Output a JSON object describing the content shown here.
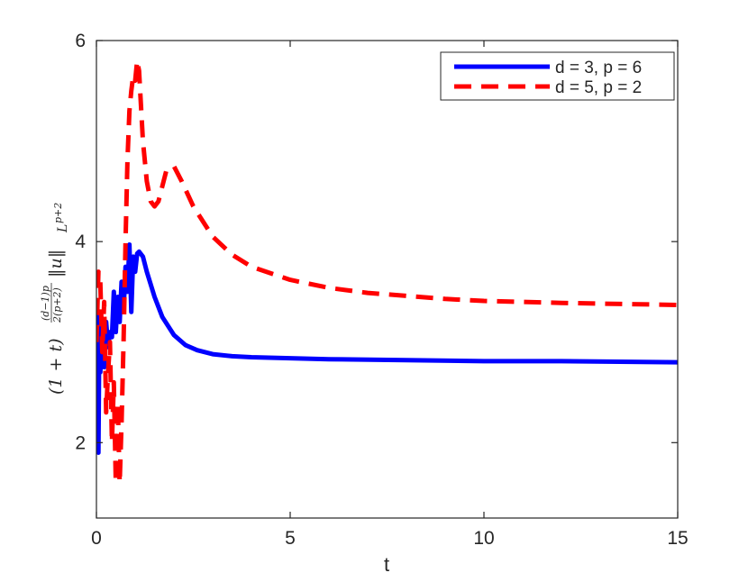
{
  "chart_data": {
    "type": "line",
    "xlabel": "t",
    "ylabel": {
      "base": "(1 + t)",
      "exponent_numerator": "(d−1)p",
      "exponent_denominator": "2(p+2)",
      "norm": "‖u‖",
      "subscript": "L",
      "subscript_exponent": "p+2"
    },
    "xlim": [
      0,
      15
    ],
    "ylim": [
      1.25,
      6
    ],
    "xticks": [
      0,
      5,
      10,
      15
    ],
    "yticks": [
      2,
      4,
      6
    ],
    "grid": false,
    "legend_position": "top-right",
    "series": [
      {
        "name": "d = 3, p = 6",
        "color": "#0000ff",
        "style": "solid",
        "x": [
          0,
          0.02,
          0.05,
          0.08,
          0.1,
          0.15,
          0.2,
          0.25,
          0.3,
          0.35,
          0.4,
          0.45,
          0.5,
          0.55,
          0.6,
          0.65,
          0.7,
          0.75,
          0.8,
          0.85,
          0.9,
          0.95,
          1.0,
          1.05,
          1.1,
          1.2,
          1.3,
          1.5,
          1.7,
          2.0,
          2.3,
          2.6,
          3.0,
          3.5,
          4.0,
          5.0,
          6.0,
          8.0,
          10.0,
          12.0,
          15.0
        ],
        "y": [
          2.6,
          3.4,
          1.9,
          3.3,
          2.7,
          3.1,
          2.75,
          3.2,
          2.95,
          3.1,
          3.05,
          3.5,
          3.1,
          3.45,
          3.2,
          3.6,
          3.3,
          3.75,
          3.5,
          3.97,
          3.3,
          3.85,
          3.7,
          3.88,
          3.9,
          3.85,
          3.7,
          3.45,
          3.25,
          3.07,
          2.97,
          2.92,
          2.88,
          2.86,
          2.85,
          2.84,
          2.83,
          2.82,
          2.81,
          2.81,
          2.8
        ]
      },
      {
        "name": "d = 5, p = 2",
        "color": "#ff0000",
        "style": "dashed",
        "x": [
          0,
          0.05,
          0.1,
          0.15,
          0.2,
          0.25,
          0.3,
          0.35,
          0.4,
          0.45,
          0.5,
          0.55,
          0.6,
          0.65,
          0.7,
          0.75,
          0.8,
          0.85,
          0.9,
          0.95,
          1.0,
          1.05,
          1.1,
          1.2,
          1.3,
          1.4,
          1.5,
          1.6,
          1.7,
          1.8,
          2.0,
          2.2,
          2.5,
          3.0,
          3.5,
          4.0,
          5.0,
          6.0,
          7.0,
          8.0,
          9.0,
          10.0,
          12.0,
          15.0
        ],
        "y": [
          3.0,
          3.7,
          3.6,
          2.9,
          3.4,
          2.3,
          2.7,
          3.0,
          2.0,
          2.6,
          1.6,
          2.4,
          1.6,
          2.2,
          3.0,
          4.0,
          4.8,
          5.3,
          5.5,
          5.65,
          5.6,
          5.8,
          5.7,
          5.0,
          4.6,
          4.4,
          4.35,
          4.4,
          4.55,
          4.7,
          4.75,
          4.6,
          4.35,
          4.05,
          3.87,
          3.75,
          3.62,
          3.54,
          3.49,
          3.46,
          3.43,
          3.41,
          3.39,
          3.37
        ]
      }
    ]
  }
}
